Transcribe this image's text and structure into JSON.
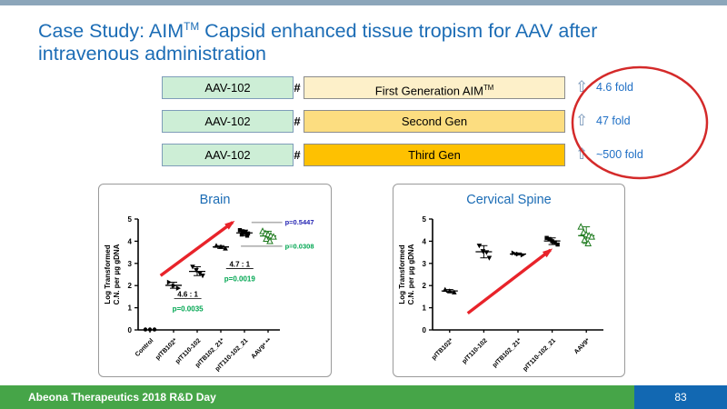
{
  "slide_title": {
    "part1": "Case Study: AIM",
    "sup": "TM",
    "part2": " Capsid enhanced tissue tropism for AAV after intravenous administration"
  },
  "diagram": {
    "arrow_glyph": "⇧",
    "rows": [
      {
        "left_label": "AAV-102",
        "hash": "#",
        "gen_label": "First Generation AIM",
        "gen_sup": "TM",
        "fold": "4.6 fold",
        "box_fill": "#fdf0c9"
      },
      {
        "left_label": "AAV-102",
        "hash": "#",
        "gen_label": "Second Gen",
        "gen_sup": "",
        "fold": "47 fold",
        "box_fill": "#fcdd80"
      },
      {
        "left_label": "AAV-102",
        "hash": "#",
        "gen_label": "Third Gen",
        "gen_sup": "",
        "fold": "~500 fold",
        "box_fill": "#fec101"
      }
    ]
  },
  "chart_data": [
    {
      "type": "scatter",
      "title": "Brain",
      "ylabel_line1": "Log Transformed",
      "ylabel_line2": "C.N. per µg gDNA",
      "ylim": [
        0,
        5
      ],
      "yticks": [
        0,
        1,
        2,
        3,
        4,
        5
      ],
      "grid": false,
      "categories": [
        "Control",
        "pITB102*",
        "pIT110-102",
        "pITB102_21*",
        "pIT110-102_21",
        "AAV9* **"
      ],
      "series": [
        {
          "name": "Control",
          "marker": "circle",
          "color": "#000000",
          "points": [
            0.02,
            0.02,
            0.02
          ],
          "show_error": false
        },
        {
          "name": "pITB102*",
          "marker": "tri-right",
          "color": "#000000",
          "points": [
            2.15,
            2.0,
            1.88
          ]
        },
        {
          "name": "pIT110-102",
          "marker": "tri-down",
          "color": "#000000",
          "points": [
            2.85,
            2.7,
            2.55,
            2.45
          ]
        },
        {
          "name": "pITB102_21*",
          "marker": "tri-up",
          "color": "#000000",
          "points": [
            3.8,
            3.75,
            3.68
          ]
        },
        {
          "name": "pIT110-102_21",
          "marker": "square",
          "color": "#000000",
          "points": [
            4.5,
            4.45,
            4.4,
            4.35,
            4.3,
            4.25
          ]
        },
        {
          "name": "AAV9* **",
          "marker": "tri-open",
          "color": "#1e7a1e",
          "points": [
            4.45,
            4.35,
            4.3,
            4.25,
            4.2,
            4.1,
            4.0
          ]
        }
      ],
      "ratios": [
        {
          "text": "4.6 : 1",
          "x": 1.6,
          "y": 1.5,
          "p": "p=0.0035",
          "p_y": 0.85,
          "p_color": "#00a651"
        },
        {
          "text": "4.7 : 1",
          "x": 3.8,
          "y": 2.85,
          "p": "p=0.0019",
          "p_y": 2.2,
          "p_color": "#00a651"
        }
      ],
      "comparisons": [
        {
          "y": 4.85,
          "x1": 4.3,
          "x2": 5.6,
          "label": "p=0.5447",
          "color": "#2222b2"
        },
        {
          "y": 3.78,
          "x1": 3.85,
          "x2": 5.6,
          "label": "p=0.0308",
          "color": "#00a651"
        }
      ],
      "trend_arrow": {
        "x1": 0.45,
        "y1": 2.45,
        "x2": 3.5,
        "y2": 4.85,
        "color": "#e8232a"
      }
    },
    {
      "type": "scatter",
      "title": "Cervical Spine",
      "ylabel_line1": "Log Transformed",
      "ylabel_line2": "C.N. per µg gDNA",
      "ylim": [
        0,
        5
      ],
      "yticks": [
        0,
        1,
        2,
        3,
        4,
        5
      ],
      "grid": false,
      "categories": [
        "pITB102*",
        "pIT110-102",
        "pITB102_21*",
        "pIT110-102_21",
        "AAV9*"
      ],
      "series": [
        {
          "name": "pITB102*",
          "marker": "tri-up",
          "color": "#000000",
          "points": [
            1.82,
            1.75,
            1.7
          ]
        },
        {
          "name": "pIT110-102",
          "marker": "tri-down",
          "color": "#000000",
          "points": [
            3.8,
            3.55,
            3.5,
            3.25
          ]
        },
        {
          "name": "pITB102_21*",
          "marker": "tri-right",
          "color": "#000000",
          "points": [
            3.47,
            3.42,
            3.38
          ]
        },
        {
          "name": "pIT110-102_21",
          "marker": "square",
          "color": "#000000",
          "points": [
            4.15,
            4.1,
            4.0,
            3.95,
            3.85
          ]
        },
        {
          "name": "AAV9*",
          "marker": "tri-open",
          "color": "#1e7a1e",
          "points": [
            4.65,
            4.4,
            4.3,
            4.25,
            4.2,
            4.05,
            3.9
          ]
        }
      ],
      "ratios": [],
      "comparisons": [],
      "trend_arrow": {
        "x1": 0.53,
        "y1": 0.75,
        "x2": 2.95,
        "y2": 3.6,
        "color": "#e8232a"
      }
    }
  ],
  "footer": {
    "label": "Abeona Therapeutics 2018 R&D Day",
    "page": "83"
  },
  "colors": {
    "title_blue": "#1b6cb5",
    "fold_text_blue": "#1f6fc5",
    "circle_red": "#d42a2a",
    "trend_arrow_red": "#e8232a",
    "p_green": "#00a651",
    "p_dark_blue": "#2222b2",
    "aav9_green": "#1e7a1e",
    "footer_green": "#46a548",
    "footer_blue": "#1268b2",
    "top_bar_gray_blue": "#8ca6ba",
    "aav_box_fill": "#cdeed6",
    "aav_box_border": "#7f9db9"
  }
}
